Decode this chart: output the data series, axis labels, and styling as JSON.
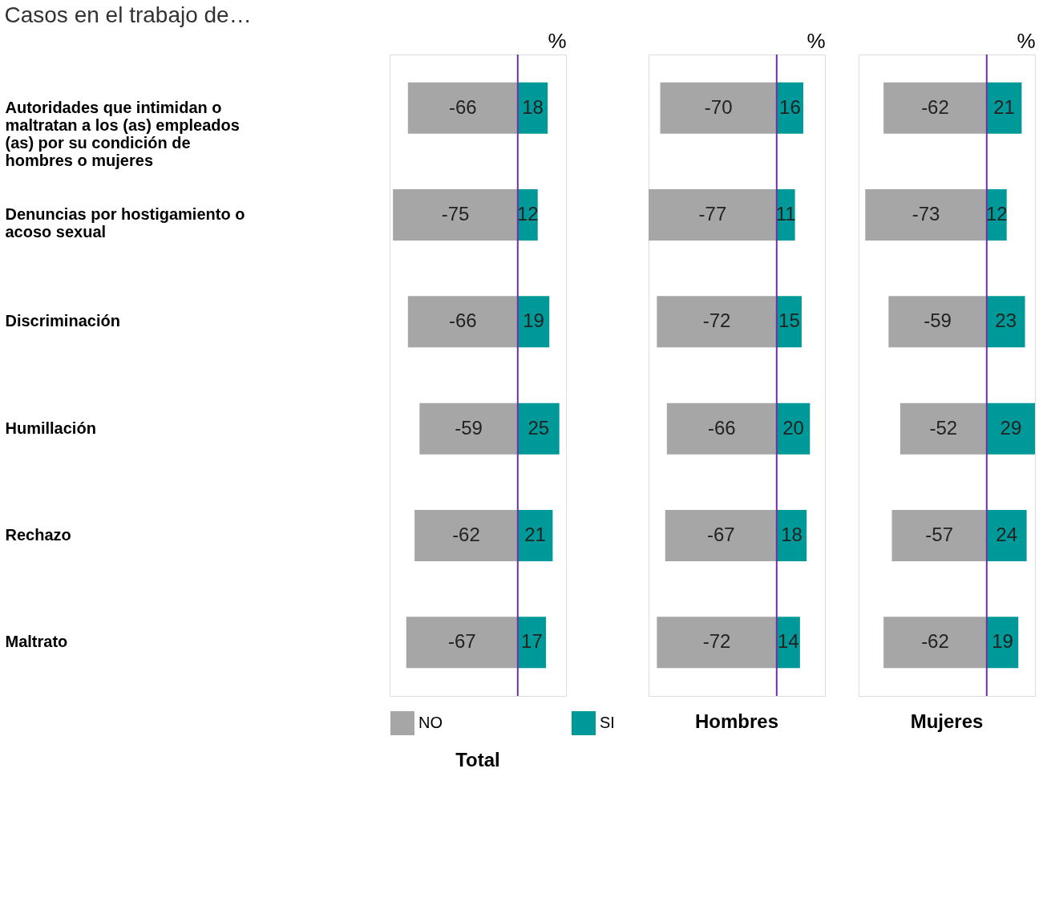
{
  "chart_data": [
    {
      "type": "bar",
      "orientation": "horizontal",
      "stacked": true,
      "title": "Casos en el trabajo de…",
      "subtitle": "Total",
      "xlabel": "%",
      "tick_labels": "y",
      "data_labels": true,
      "grid": false,
      "legend": "bottom",
      "categories": [
        "Autoridades que intimidan o maltratan a los (as) empleados (as) por su condición de hombres o mujeres",
        "Denuncias por hostigamiento o acoso sexual",
        "Discriminación",
        "Humillación",
        "Rechazo",
        "Maltrato"
      ],
      "series": [
        {
          "name": "NO",
          "color": "#a6a6a6",
          "values": [
            -66,
            -75,
            -66,
            -59,
            -62,
            -67
          ]
        },
        {
          "name": "SI",
          "color": "#009999",
          "values": [
            18,
            12,
            19,
            25,
            21,
            17
          ]
        }
      ],
      "ref_lines": [
        {
          "axis": "x",
          "value": 0,
          "color": "#7030a0"
        }
      ]
    },
    {
      "type": "bar",
      "orientation": "horizontal",
      "stacked": true,
      "subtitle": "Hombres",
      "xlabel": "%",
      "tick_labels": false,
      "data_labels": true,
      "grid": false,
      "categories": [
        "Autoridades que intimidan o maltratan a los (as) empleados (as) por su condición de hombres o mujeres",
        "Denuncias por hostigamiento o acoso sexual",
        "Discriminación",
        "Humillación",
        "Rechazo",
        "Maltrato"
      ],
      "series": [
        {
          "color": "#a6a6a6",
          "values": [
            -70,
            -77,
            -72,
            -66,
            -67,
            -72
          ]
        },
        {
          "color": "#009999",
          "values": [
            16,
            11,
            15,
            20,
            18,
            14
          ]
        }
      ],
      "ref_lines": [
        {
          "axis": "x",
          "value": 0,
          "color": "#7030a0"
        }
      ]
    },
    {
      "type": "bar",
      "orientation": "horizontal",
      "stacked": true,
      "subtitle": "Mujeres",
      "xlabel": "%",
      "tick_labels": false,
      "data_labels": true,
      "grid": false,
      "categories": [
        "Autoridades que intimidan o maltratan a los (as) empleados (as) por su condición de hombres o mujeres",
        "Denuncias por hostigamiento o acoso sexual",
        "Discriminación",
        "Humillación",
        "Rechazo",
        "Maltrato"
      ],
      "series": [
        {
          "color": "#a6a6a6",
          "values": [
            -62,
            -73,
            -59,
            -52,
            -57,
            -62
          ]
        },
        {
          "color": "#009999",
          "values": [
            21,
            12,
            23,
            29,
            24,
            19
          ]
        }
      ],
      "ref_lines": [
        {
          "axis": "x",
          "value": 0,
          "color": "#7030a0"
        }
      ]
    }
  ]
}
